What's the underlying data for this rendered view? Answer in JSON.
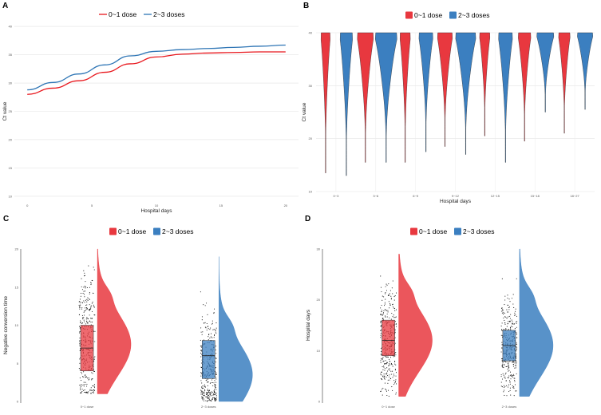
{
  "legend": {
    "group1": "0~1 dose",
    "group2": "2~3 doses",
    "color1": "#E8161C",
    "color2": "#2E75B5"
  },
  "chart_data": [
    {
      "panel": "A",
      "type": "line",
      "xlabel": "Hospital days",
      "ylabel": "Ct value",
      "xlim": [
        -1,
        21
      ],
      "ylim": [
        9,
        41
      ],
      "xticks": [
        "0",
        "5",
        "10",
        "15",
        "20"
      ],
      "yticks": [
        "10",
        "15",
        "20",
        "25",
        "30",
        "35",
        "40"
      ],
      "x": [
        0,
        2,
        4,
        6,
        8,
        10,
        12,
        14,
        16,
        18,
        20
      ],
      "series": [
        {
          "name": "0~1 dose",
          "values": [
            28.0,
            29.1,
            30.4,
            31.9,
            33.4,
            34.6,
            35.1,
            35.3,
            35.4,
            35.5,
            35.5
          ]
        },
        {
          "name": "2~3 doses",
          "values": [
            28.8,
            30.1,
            31.6,
            33.2,
            34.8,
            35.6,
            35.9,
            36.1,
            36.3,
            36.5,
            36.7
          ]
        }
      ]
    },
    {
      "panel": "B",
      "type": "violin",
      "xlabel": "Hospital days",
      "ylabel": "Ct value",
      "ylim": [
        10,
        40
      ],
      "yticks": [
        "10",
        "20",
        "30",
        "40"
      ],
      "categories": [
        "0~3",
        "3~6",
        "6~9",
        "9~12",
        "12~15",
        "15~18",
        "18~27"
      ],
      "series": [
        {
          "name": "0~1 dose",
          "min": [
            13.5,
            15.5,
            15.5,
            18.5,
            20.5,
            19.5,
            21.0
          ],
          "max": [
            40,
            40,
            40,
            40,
            40,
            40,
            40
          ]
        },
        {
          "name": "2~3 doses",
          "min": [
            13.0,
            15.5,
            17.5,
            17.0,
            15.5,
            25.0,
            25.5
          ],
          "max": [
            40,
            40,
            40,
            40,
            40,
            40,
            40
          ]
        }
      ]
    },
    {
      "panel": "C",
      "type": "raincloud",
      "xlabel": "",
      "ylabel": "Negative conversion time",
      "ylim": [
        0,
        20
      ],
      "yticks": [
        "0",
        "5",
        "10",
        "15",
        "20"
      ],
      "categories": [
        "0~1 dose",
        "2~3 doses"
      ],
      "box": [
        {
          "q1": 4,
          "median": 7,
          "q3": 10,
          "min": 1,
          "max": 20,
          "mode": 7.5
        },
        {
          "q1": 3,
          "median": 6,
          "q3": 8,
          "min": 0,
          "max": 19,
          "mode": 3.5
        }
      ]
    },
    {
      "panel": "D",
      "type": "raincloud",
      "xlabel": "",
      "ylabel": "Hospital days",
      "ylim": [
        0,
        30
      ],
      "yticks": [
        "0",
        "10",
        "20",
        "30"
      ],
      "categories": [
        "0~1 dose",
        "2~3 doses"
      ],
      "box": [
        {
          "q1": 9,
          "median": 12,
          "q3": 16,
          "min": 1,
          "max": 29,
          "mode": 12
        },
        {
          "q1": 8,
          "median": 11,
          "q3": 14,
          "min": 1,
          "max": 30,
          "mode": 11
        }
      ]
    }
  ]
}
